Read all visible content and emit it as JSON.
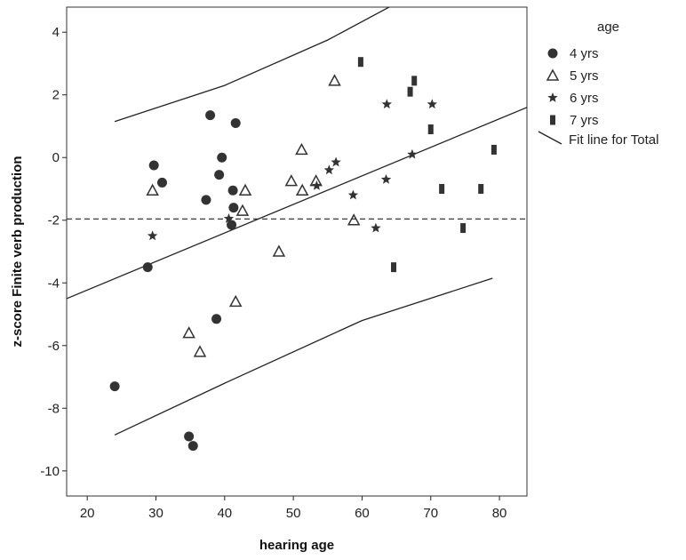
{
  "chart_data": {
    "type": "scatter",
    "title": "",
    "xlabel": "hearing age",
    "ylabel": "z-score Finite verb production",
    "xlim": [
      17,
      84
    ],
    "ylim": [
      -10.8,
      4.8
    ],
    "xticks": [
      20,
      30,
      40,
      50,
      60,
      70,
      80
    ],
    "yticks": [
      4,
      2,
      0,
      -2,
      -4,
      -6,
      -8,
      -10
    ],
    "grid": false,
    "legend_title": "age",
    "legend_position": "right",
    "reference_line_y": -1.96,
    "series": [
      {
        "name": "4 yrs",
        "marker": "circle",
        "points": [
          [
            24,
            -7.3
          ],
          [
            28.8,
            -3.5
          ],
          [
            29.7,
            -0.25
          ],
          [
            30.9,
            -0.8
          ],
          [
            34.8,
            -8.9
          ],
          [
            35.4,
            -9.2
          ],
          [
            37.3,
            -1.35
          ],
          [
            37.9,
            1.35
          ],
          [
            38.8,
            -5.15
          ],
          [
            39.2,
            -0.55
          ],
          [
            39.6,
            0.0
          ],
          [
            41.0,
            -2.15
          ],
          [
            41.2,
            -1.05
          ],
          [
            41.3,
            -1.6
          ],
          [
            41.6,
            1.1
          ]
        ]
      },
      {
        "name": "5 yrs",
        "marker": "triangle",
        "points": [
          [
            29.5,
            -1.05
          ],
          [
            34.8,
            -5.6
          ],
          [
            36.4,
            -6.2
          ],
          [
            41.6,
            -4.6
          ],
          [
            42.6,
            -1.7
          ],
          [
            43.0,
            -1.05
          ],
          [
            47.9,
            -3.0
          ],
          [
            49.7,
            -0.75
          ],
          [
            51.2,
            0.25
          ],
          [
            51.3,
            -1.05
          ],
          [
            53.3,
            -0.75
          ],
          [
            56.0,
            2.45
          ],
          [
            58.8,
            -2.0
          ]
        ]
      },
      {
        "name": "6 yrs",
        "marker": "star",
        "points": [
          [
            29.5,
            -2.5
          ],
          [
            40.6,
            -1.95
          ],
          [
            53.4,
            -0.9
          ],
          [
            55.2,
            -0.4
          ],
          [
            56.2,
            -0.15
          ],
          [
            58.7,
            -1.2
          ],
          [
            62.0,
            -2.25
          ],
          [
            63.5,
            -0.7
          ],
          [
            63.6,
            1.7
          ],
          [
            67.3,
            0.1
          ],
          [
            70.2,
            1.7
          ]
        ]
      },
      {
        "name": "7 yrs",
        "marker": "bar",
        "points": [
          [
            59.8,
            3.05
          ],
          [
            64.6,
            -3.5
          ],
          [
            67.0,
            2.1
          ],
          [
            67.6,
            2.45
          ],
          [
            70.0,
            0.9
          ],
          [
            71.6,
            -1.0
          ],
          [
            74.7,
            -2.25
          ],
          [
            77.3,
            -1.0
          ],
          [
            79.2,
            0.25
          ]
        ]
      }
    ],
    "fit_line": {
      "name": "Fit line for Total",
      "points": [
        [
          17,
          -4.5
        ],
        [
          84,
          1.6
        ]
      ]
    },
    "prediction_band_upper": {
      "points": [
        [
          24,
          1.15
        ],
        [
          40,
          2.3
        ],
        [
          55,
          3.75
        ],
        [
          66.5,
          5.1
        ]
      ]
    },
    "prediction_band_lower": {
      "points": [
        [
          24,
          -8.85
        ],
        [
          40,
          -7.2
        ],
        [
          60,
          -5.2
        ],
        [
          79,
          -3.85
        ]
      ]
    }
  },
  "colors": {
    "ink": "#222222",
    "marker": "#333333",
    "axis": "#333333",
    "background": "#ffffff"
  }
}
